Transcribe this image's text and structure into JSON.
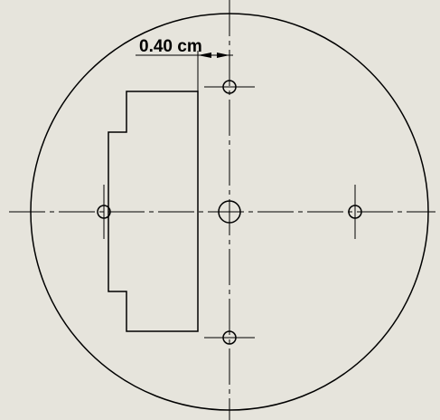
{
  "colors": {
    "background": "#e6e4dc",
    "line": "#000000"
  },
  "dimension": {
    "label": "0.40 cm"
  }
}
